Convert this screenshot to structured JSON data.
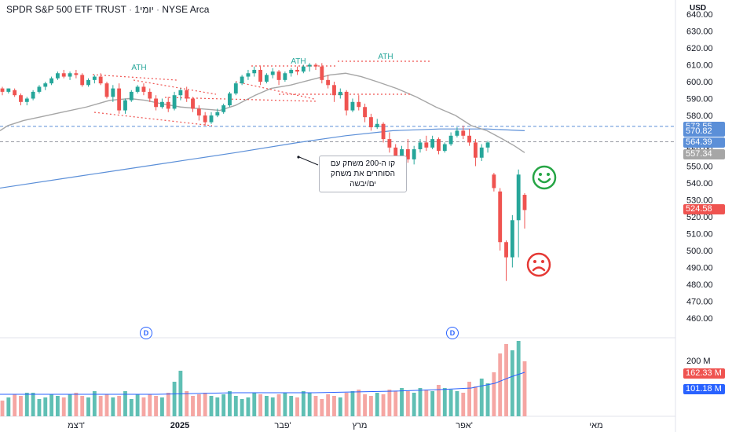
{
  "header": {
    "symbol": "SPDR S&P 500 ETF TRUST",
    "separator1": "·",
    "interval": "1יומי",
    "separator2": "·",
    "exchange": "NYSE Arca",
    "currency": "USD"
  },
  "annotation_text": "קו ה-200 משחק עם הסוחרים את משחק ים/יבשה",
  "ath_labels": [
    "ATH",
    "ATH",
    "ATH"
  ],
  "dividend_marker": "D",
  "faces": {
    "happy": "smiley-face-icon",
    "sad": "sad-face-icon",
    "happy_color": "#26a545",
    "sad_color": "#e53935"
  },
  "colors": {
    "up": "#26a69a",
    "down": "#ef5350",
    "ma_short": "#a6a6a6",
    "ma_long": "#5b8fd8",
    "annot_lines": "#ef5350",
    "ath_text": "#26a69a",
    "volume_ma": "#2962ff"
  },
  "chart_data": {
    "type": "candlestick",
    "price_axis": {
      "ticks": [
        "640.00",
        "630.00",
        "620.00",
        "610.00",
        "600.00",
        "590.00",
        "580.00",
        "570.00",
        "560.00",
        "550.00",
        "540.00",
        "530.00",
        "520.00",
        "510.00",
        "500.00",
        "490.00",
        "480.00",
        "470.00",
        "460.00"
      ],
      "ylim": [
        455,
        642
      ]
    },
    "price_labels": [
      {
        "value": 573.55,
        "text": "573.55",
        "color": "#5b8fd8"
      },
      {
        "value": 570.82,
        "text": "570.82",
        "color": "#5b8fd8"
      },
      {
        "value": 564.39,
        "text": "564.39",
        "color": "#5b8fd8"
      },
      {
        "value": 557.34,
        "text": "557.34",
        "color": "#a6a6a6"
      },
      {
        "value": 524.58,
        "text": "524.58",
        "color": "#ef5350"
      }
    ],
    "horizontal_levels": [
      573.55,
      564.39
    ],
    "x_axis_labels": [
      "דצמ'",
      "2025",
      "פבר'",
      "מרץ",
      "אפר'",
      "מאי"
    ],
    "volume_axis": {
      "ticks": [
        "200 M"
      ],
      "labels": [
        {
          "text": "162.33 M",
          "color": "#ef5350"
        },
        {
          "text": "101.18 M",
          "color": "#2962ff"
        }
      ]
    },
    "candles": [
      [
        596,
        597,
        592,
        594
      ],
      [
        594,
        596,
        593,
        596
      ],
      [
        595,
        596,
        591,
        592
      ],
      [
        592,
        593,
        586,
        588
      ],
      [
        588,
        591,
        586,
        590
      ],
      [
        590,
        595,
        589,
        594
      ],
      [
        594,
        598,
        593,
        597
      ],
      [
        597,
        600,
        595,
        599
      ],
      [
        599,
        603,
        598,
        602
      ],
      [
        602,
        606,
        601,
        605
      ],
      [
        605,
        607,
        602,
        603
      ],
      [
        603,
        606,
        601,
        605
      ],
      [
        605,
        607,
        602,
        604
      ],
      [
        604,
        605,
        597,
        598
      ],
      [
        598,
        602,
        597,
        601
      ],
      [
        601,
        604,
        599,
        603
      ],
      [
        603,
        605,
        598,
        599
      ],
      [
        599,
        600,
        590,
        591
      ],
      [
        591,
        598,
        588,
        596
      ],
      [
        596,
        599,
        581,
        583
      ],
      [
        583,
        590,
        581,
        589
      ],
      [
        589,
        595,
        588,
        594
      ],
      [
        594,
        598,
        593,
        597
      ],
      [
        597,
        599,
        592,
        594
      ],
      [
        594,
        596,
        588,
        590
      ],
      [
        590,
        592,
        583,
        585
      ],
      [
        585,
        590,
        584,
        588
      ],
      [
        588,
        591,
        582,
        584
      ],
      [
        584,
        594,
        583,
        592
      ],
      [
        592,
        596,
        589,
        595
      ],
      [
        595,
        597,
        588,
        590
      ],
      [
        590,
        591,
        582,
        584
      ],
      [
        584,
        586,
        577,
        580
      ],
      [
        580,
        582,
        574,
        576
      ],
      [
        576,
        582,
        575,
        580
      ],
      [
        580,
        584,
        579,
        582
      ],
      [
        582,
        587,
        581,
        586
      ],
      [
        586,
        594,
        585,
        593
      ],
      [
        593,
        600,
        592,
        599
      ],
      [
        599,
        604,
        598,
        603
      ],
      [
        603,
        607,
        601,
        605
      ],
      [
        605,
        609,
        603,
        607
      ],
      [
        607,
        609,
        598,
        600
      ],
      [
        600,
        605,
        599,
        604
      ],
      [
        604,
        608,
        602,
        606
      ],
      [
        606,
        607,
        598,
        601
      ],
      [
        601,
        606,
        600,
        605
      ],
      [
        605,
        608,
        603,
        607
      ],
      [
        607,
        609,
        604,
        606
      ],
      [
        606,
        610,
        605,
        609
      ],
      [
        609,
        611,
        606,
        610
      ],
      [
        610,
        611,
        607,
        609
      ],
      [
        609,
        611,
        599,
        601
      ],
      [
        601,
        604,
        596,
        598
      ],
      [
        598,
        600,
        588,
        592
      ],
      [
        592,
        596,
        590,
        594
      ],
      [
        594,
        595,
        580,
        583
      ],
      [
        583,
        590,
        582,
        588
      ],
      [
        588,
        592,
        583,
        585
      ],
      [
        585,
        587,
        576,
        579
      ],
      [
        579,
        581,
        571,
        573
      ],
      [
        573,
        578,
        572,
        575
      ],
      [
        575,
        576,
        564,
        566
      ],
      [
        566,
        570,
        558,
        561
      ],
      [
        561,
        563,
        552,
        556
      ],
      [
        556,
        562,
        553,
        560
      ],
      [
        560,
        566,
        552,
        554
      ],
      [
        554,
        562,
        551,
        560
      ],
      [
        560,
        566,
        558,
        564
      ],
      [
        564,
        568,
        559,
        561
      ],
      [
        561,
        568,
        560,
        566
      ],
      [
        566,
        567,
        557,
        559
      ],
      [
        559,
        564,
        558,
        563
      ],
      [
        563,
        570,
        562,
        568
      ],
      [
        568,
        573,
        567,
        571
      ],
      [
        571,
        574,
        566,
        568
      ],
      [
        568,
        572,
        562,
        564
      ],
      [
        564,
        566,
        550,
        555
      ],
      [
        555,
        563,
        553,
        561
      ],
      [
        561,
        565,
        558,
        564
      ],
      [
        545,
        546,
        535,
        537
      ],
      [
        535,
        537,
        500,
        505
      ],
      [
        505,
        506,
        482,
        496
      ],
      [
        496,
        521,
        490,
        518
      ],
      [
        518,
        548,
        496,
        545
      ],
      [
        533,
        534,
        513,
        524
      ]
    ],
    "ma_short_points": [
      [
        0,
        571
      ],
      [
        10,
        574
      ],
      [
        30,
        577
      ],
      [
        50,
        579
      ],
      [
        80,
        582
      ],
      [
        110,
        585
      ],
      [
        140,
        589
      ],
      [
        165,
        590
      ],
      [
        185,
        589
      ],
      [
        205,
        587
      ],
      [
        230,
        585
      ],
      [
        255,
        584
      ],
      [
        280,
        583
      ],
      [
        300,
        586
      ],
      [
        325,
        592
      ],
      [
        345,
        596
      ],
      [
        370,
        598
      ],
      [
        395,
        601
      ],
      [
        420,
        604
      ],
      [
        440,
        605
      ],
      [
        460,
        603
      ],
      [
        480,
        600
      ],
      [
        505,
        596
      ],
      [
        530,
        591
      ],
      [
        555,
        585
      ],
      [
        580,
        580
      ],
      [
        600,
        574
      ],
      [
        620,
        571
      ],
      [
        640,
        566
      ],
      [
        655,
        562
      ],
      [
        668,
        558
      ]
    ],
    "ma_long_points": [
      [
        0,
        537
      ],
      [
        100,
        544
      ],
      [
        200,
        551
      ],
      [
        300,
        558
      ],
      [
        380,
        564
      ],
      [
        440,
        568
      ],
      [
        500,
        571
      ],
      [
        560,
        572
      ],
      [
        620,
        572
      ],
      [
        668,
        571
      ]
    ],
    "volumes": [
      10,
      12,
      14,
      13,
      15,
      15,
      11,
      12,
      14,
      13,
      12,
      14,
      15,
      13,
      12,
      16,
      13,
      14,
      12,
      13,
      16,
      11,
      14,
      12,
      14,
      13,
      12,
      15,
      22,
      29,
      16,
      13,
      14,
      15,
      13,
      12,
      14,
      16,
      13,
      11,
      12,
      15,
      14,
      13,
      12,
      14,
      15,
      13,
      12,
      16,
      15,
      13,
      11,
      14,
      13,
      12,
      15,
      16,
      17,
      14,
      13,
      15,
      14,
      17,
      16,
      18,
      16,
      15,
      18,
      17,
      16,
      20,
      18,
      17,
      16,
      15,
      22,
      19,
      24,
      21,
      28,
      40,
      46,
      42,
      48,
      35
    ],
    "volume_ma_points": [
      [
        0,
        14
      ],
      [
        100,
        14
      ],
      [
        200,
        14
      ],
      [
        300,
        15
      ],
      [
        400,
        15
      ],
      [
        500,
        16
      ],
      [
        560,
        17
      ],
      [
        600,
        18
      ],
      [
        630,
        21
      ],
      [
        650,
        25
      ],
      [
        668,
        28
      ]
    ]
  }
}
